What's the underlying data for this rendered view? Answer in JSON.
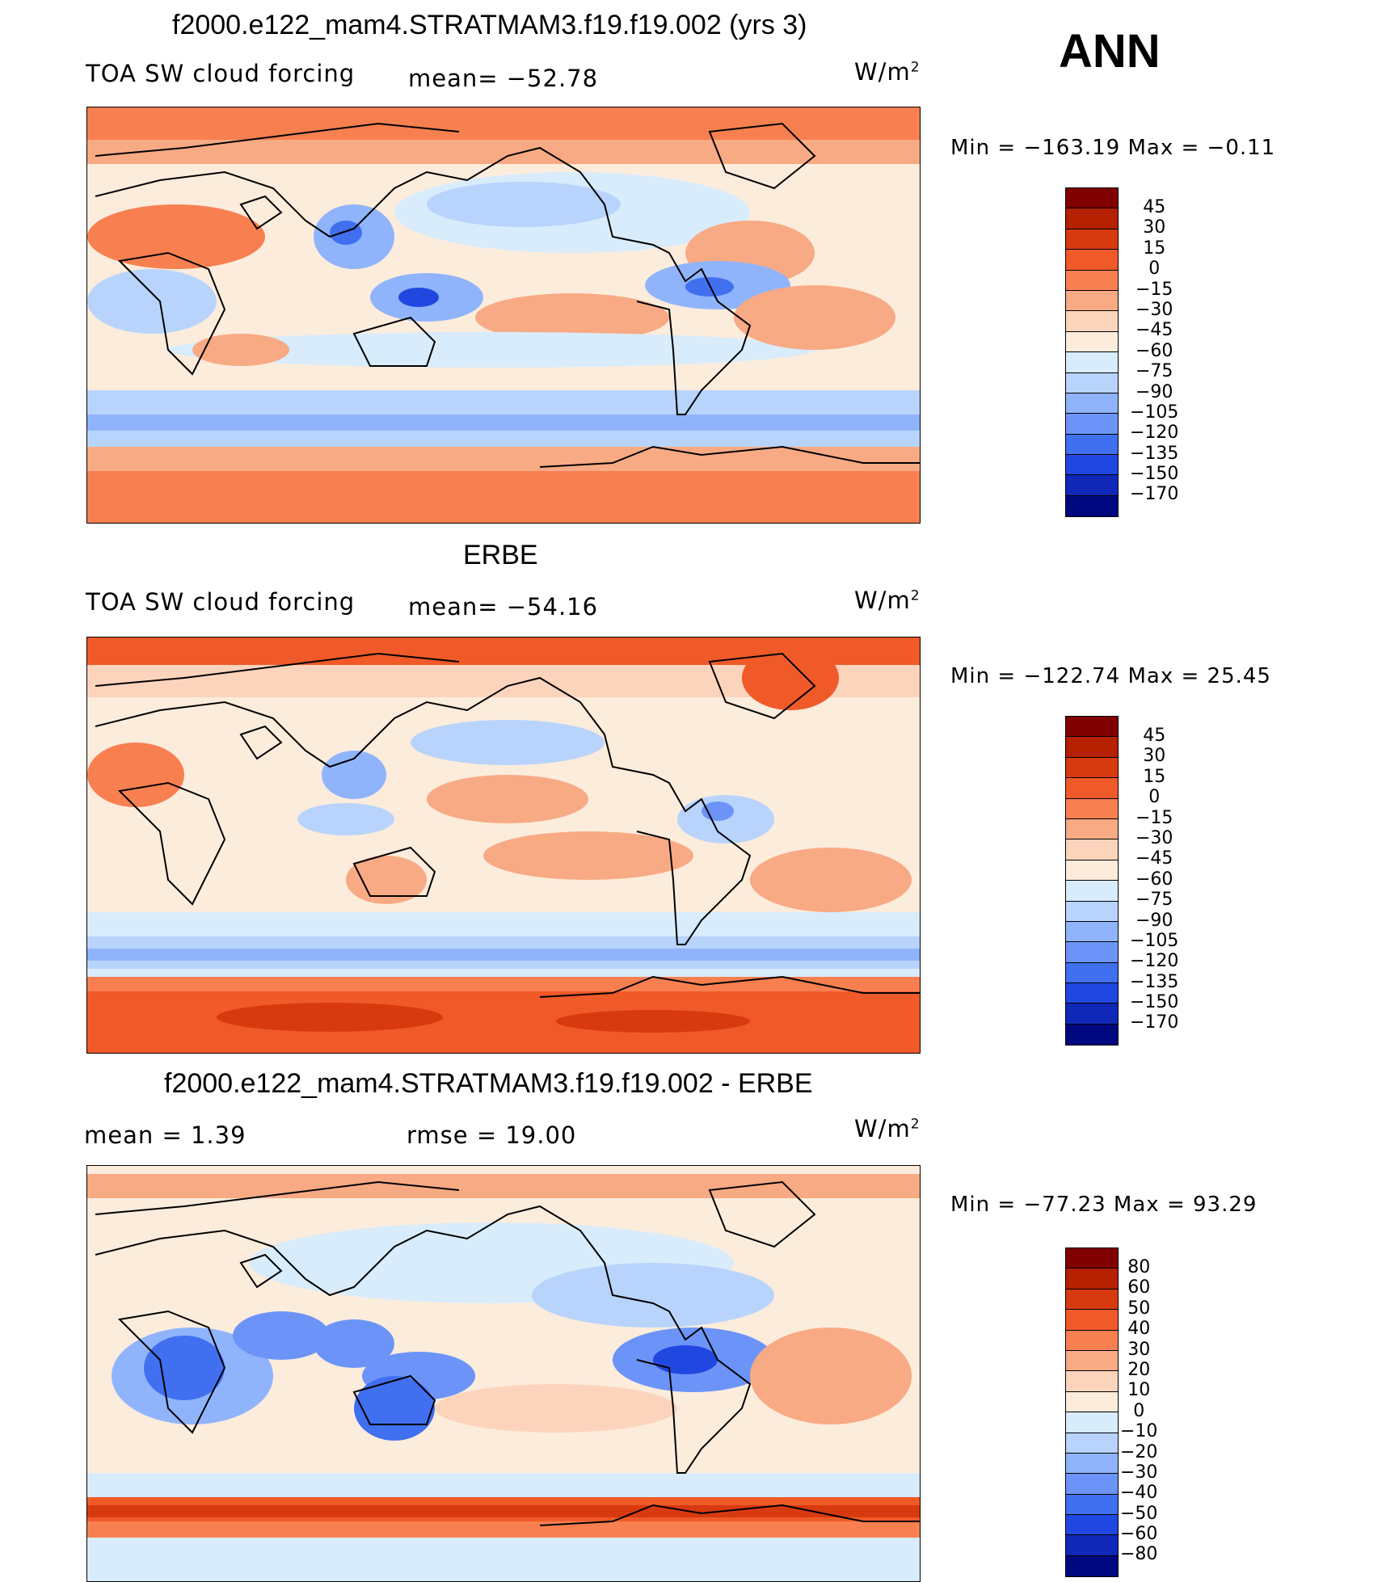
{
  "season": "ANN",
  "panels": [
    {
      "title": "f2000.e122_mam4.STRATMAM3.f19.f19.002 (yrs 3)",
      "left_label": "TOA SW cloud forcing",
      "mid_label": "mean= −52.78",
      "units": "W/m",
      "units_sup": "2",
      "min_max": "Min = −163.19 Max =  −0.11",
      "cbar_labels": [
        "45",
        "30",
        "15",
        "0",
        "−15",
        "−30",
        "−45",
        "−60",
        "−75",
        "−90",
        "−105",
        "−120",
        "−135",
        "−150",
        "−170"
      ],
      "cbar_colors": [
        "#800000",
        "#b42000",
        "#d83a10",
        "#f05a28",
        "#f88050",
        "#f8aa84",
        "#fcd4bc",
        "#fcecdc",
        "#d8ecfc",
        "#b8d4fc",
        "#90b4fc",
        "#6c94f8",
        "#4070f0",
        "#2048e0",
        "#1028b8",
        "#000880"
      ]
    },
    {
      "title": "ERBE",
      "left_label": "TOA SW cloud forcing",
      "mid_label": "mean= −54.16",
      "units": "W/m",
      "units_sup": "2",
      "min_max": "Min = −122.74 Max =   25.45",
      "cbar_labels": [
        "45",
        "30",
        "15",
        "0",
        "−15",
        "−30",
        "−45",
        "−60",
        "−75",
        "−90",
        "−105",
        "−120",
        "−135",
        "−150",
        "−170"
      ],
      "cbar_colors": [
        "#800000",
        "#b42000",
        "#d83a10",
        "#f05a28",
        "#f88050",
        "#f8aa84",
        "#fcd4bc",
        "#fcecdc",
        "#d8ecfc",
        "#b8d4fc",
        "#90b4fc",
        "#6c94f8",
        "#4070f0",
        "#2048e0",
        "#1028b8",
        "#000880"
      ]
    },
    {
      "title": "f2000.e122_mam4.STRATMAM3.f19.f19.002 - ERBE",
      "left_label": "mean =    1.39",
      "mid_label": "rmse =   19.00",
      "units": "W/m",
      "units_sup": "2",
      "min_max": "Min = −77.23 Max =  93.29",
      "cbar_labels": [
        "80",
        "60",
        "50",
        "40",
        "30",
        "20",
        "10",
        "0",
        "−10",
        "−20",
        "−30",
        "−40",
        "−50",
        "−60",
        "−80"
      ],
      "cbar_colors": [
        "#800000",
        "#b42000",
        "#d83a10",
        "#f05a28",
        "#f88050",
        "#f8aa84",
        "#fcd4bc",
        "#fcecdc",
        "#d8ecfc",
        "#b8d4fc",
        "#90b4fc",
        "#6c94f8",
        "#4070f0",
        "#2048e0",
        "#1028b8",
        "#000880"
      ]
    }
  ]
}
